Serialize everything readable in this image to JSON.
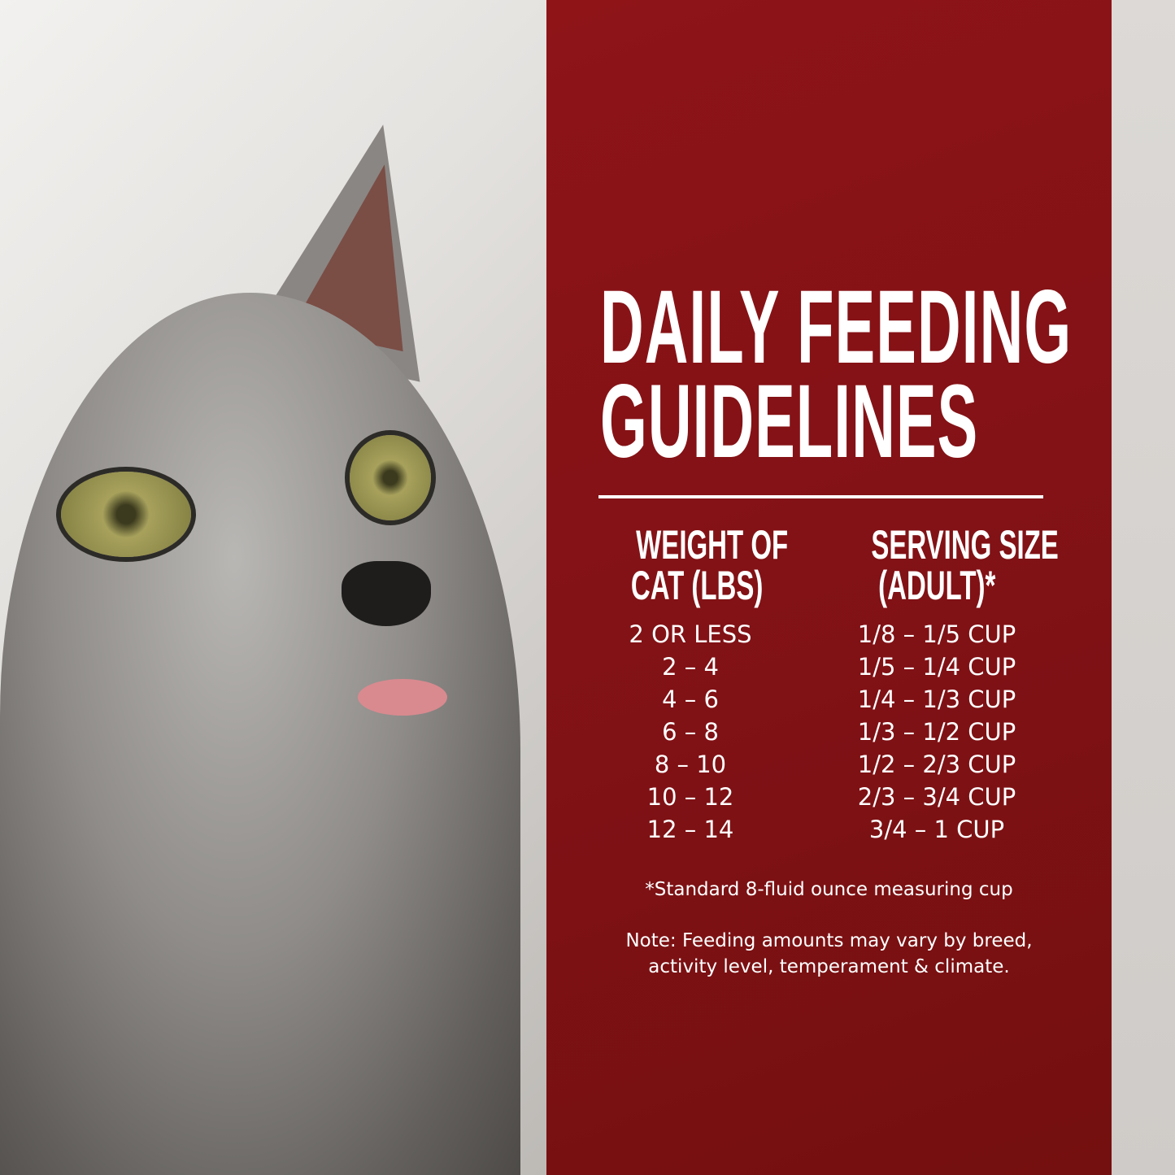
{
  "title_lines": [
    "DAILY FEEDING",
    "GUIDELINES"
  ],
  "table": {
    "headers": {
      "weight": [
        "WEIGHT OF",
        "CAT (LBS)"
      ],
      "serving": [
        "SERVING SIZE",
        "(ADULT)*"
      ]
    },
    "rows": [
      {
        "weight": "2 OR LESS",
        "serving": "1/8 – 1/5 CUP"
      },
      {
        "weight": "2 – 4",
        "serving": "1/5 – 1/4 CUP"
      },
      {
        "weight": "4 – 6",
        "serving": "1/4 – 1/3 CUP"
      },
      {
        "weight": "6 – 8",
        "serving": "1/3 – 1/2 CUP"
      },
      {
        "weight": "8 – 10",
        "serving": "1/2 – 2/3 CUP"
      },
      {
        "weight": "10 – 12",
        "serving": "2/3 – 3/4 CUP"
      },
      {
        "weight": "12 – 14",
        "serving": "3/4 – 1 CUP"
      }
    ]
  },
  "footnote": "*Standard 8-fluid ounce measuring cup",
  "note_lines": [
    "Note: Feeding amounts may vary by breed,",
    "activity level, temperament & climate."
  ],
  "colors": {
    "panel": "#861216",
    "text": "#ffffff"
  }
}
